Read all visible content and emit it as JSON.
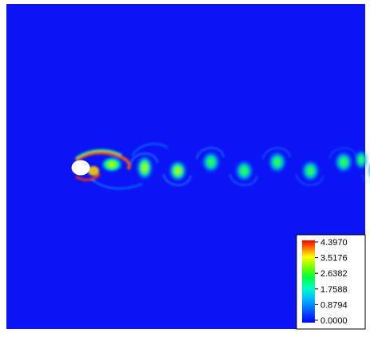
{
  "chart_data": {
    "type": "heatmap",
    "title": "",
    "xlabel": "",
    "ylabel": "",
    "colormap": [
      "#0000ff",
      "#00a0ff",
      "#00ffcc",
      "#00ff00",
      "#7fff00",
      "#ffff00",
      "#ff8000",
      "#ff0000"
    ],
    "background_color": "#0a14f5",
    "obstacle": "cylinder",
    "colorbar": {
      "min": 0,
      "max": 4.397,
      "ticks": [
        "4.3970",
        "3.5176",
        "2.6382",
        "1.7588",
        "0.8794",
        "0.0000"
      ],
      "placement": "bottom-right"
    },
    "wake": {
      "pattern": "von-karman-vortex-street",
      "vortex_count": 8
    }
  }
}
